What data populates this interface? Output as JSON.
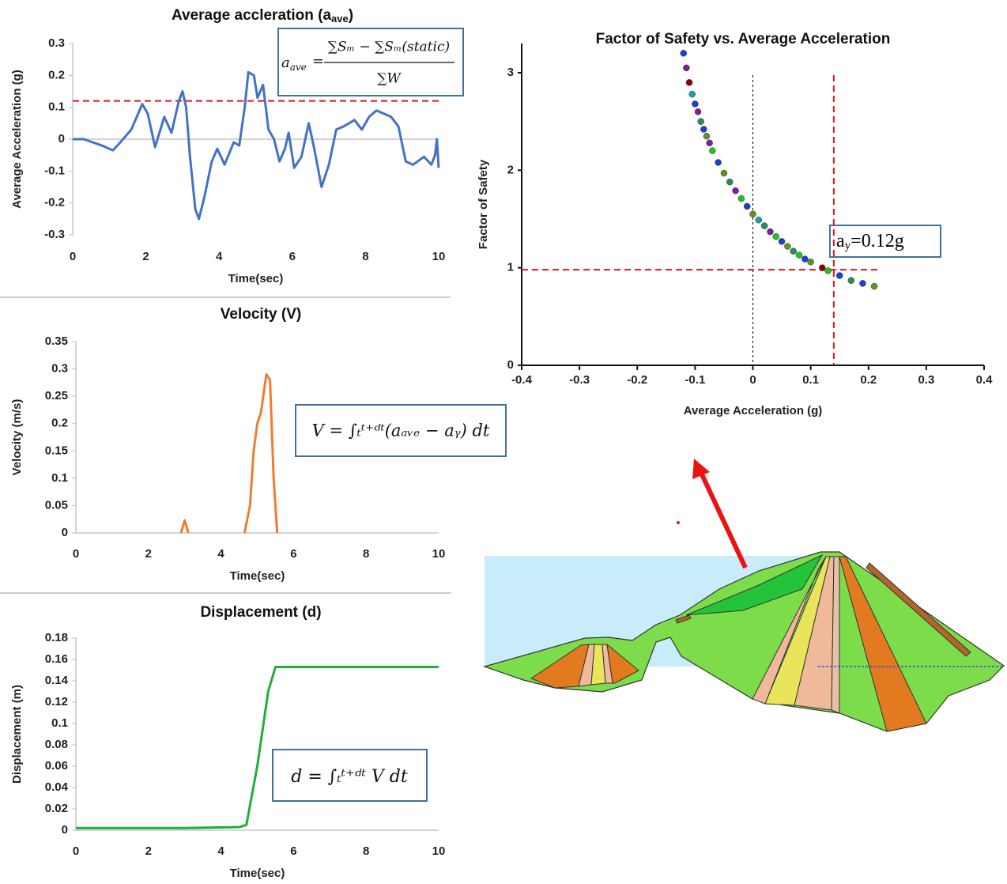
{
  "chart_data": [
    {
      "type": "line",
      "title": "Average accleration (a",
      "title_sub": "ave",
      "title_end": ")",
      "x_label": "Time(sec)",
      "y_label": "Average  Acceleration (g)",
      "xlim": [
        0,
        10
      ],
      "xticks": [
        0,
        2,
        4,
        6,
        8,
        10
      ],
      "ylim": [
        -0.3,
        0.3
      ],
      "yticks": [
        -0.3,
        -0.2,
        -0.1,
        0,
        0.1,
        0.2,
        0.3
      ],
      "threshold": 0.12,
      "threshold_color": "#e8121b",
      "formula": {
        "lhs": "a",
        "lhs_sub": "ave",
        "equals": "=",
        "numerator": "∑Sₘ − ∑Sₘ(static)",
        "denominator": "∑W"
      },
      "series": [
        {
          "color": "#4472c4",
          "x": [
            0,
            0.3,
            0.8,
            1.1,
            1.3,
            1.6,
            1.9,
            2.05,
            2.25,
            2.5,
            2.7,
            2.9,
            3.0,
            3.1,
            3.2,
            3.35,
            3.45,
            3.6,
            3.8,
            3.95,
            4.15,
            4.4,
            4.55,
            4.7,
            4.8,
            4.95,
            5.05,
            5.2,
            5.35,
            5.5,
            5.65,
            5.8,
            5.9,
            6.05,
            6.25,
            6.45,
            6.6,
            6.8,
            7.0,
            7.2,
            7.4,
            7.7,
            7.9,
            8.1,
            8.3,
            8.5,
            8.7,
            8.9,
            9.1,
            9.3,
            9.6,
            9.8,
            9.9,
            9.95,
            10
          ],
          "values": [
            0,
            0,
            -0.02,
            -0.035,
            -0.01,
            0.03,
            0.11,
            0.08,
            -0.025,
            0.07,
            0.02,
            0.12,
            0.15,
            0.1,
            -0.05,
            -0.22,
            -0.25,
            -0.18,
            -0.07,
            -0.03,
            -0.08,
            -0.01,
            -0.02,
            0.1,
            0.21,
            0.2,
            0.13,
            0.17,
            0.03,
            0,
            -0.07,
            -0.03,
            0.02,
            -0.09,
            -0.055,
            0.05,
            -0.03,
            -0.15,
            -0.08,
            0.03,
            0.04,
            0.06,
            0.03,
            0.07,
            0.09,
            0.08,
            0.07,
            0.04,
            -0.07,
            -0.08,
            -0.055,
            -0.08,
            -0.05,
            0,
            -0.09
          ]
        }
      ]
    },
    {
      "type": "line",
      "title": "Velocity (V)",
      "x_label": "Time(sec)",
      "y_label": "Velocity (m/s)",
      "xlim": [
        0,
        10
      ],
      "xticks": [
        0,
        2,
        4,
        6,
        8,
        10
      ],
      "ylim": [
        0,
        0.35
      ],
      "yticks": [
        0,
        0.05,
        0.1,
        0.15,
        0.2,
        0.25,
        0.3,
        0.35
      ],
      "formula": {
        "text": "V = ∫ₜᵗ⁺ᵈᵗ(aₐᵥₑ − aᵧ) dt"
      },
      "series": [
        {
          "color": "#ed7d31",
          "x": [
            2.9,
            3.0,
            3.1,
            null,
            4.65,
            4.8,
            4.9,
            5.0,
            5.1,
            5.25,
            5.35,
            5.45,
            5.55
          ],
          "values": [
            0,
            0.023,
            0,
            null,
            0,
            0.05,
            0.15,
            0.2,
            0.22,
            0.29,
            0.28,
            0.1,
            0
          ]
        }
      ]
    },
    {
      "type": "line",
      "title": "Displacement (d)",
      "x_label": "Time(sec)",
      "y_label": "Displacement (m)",
      "xlim": [
        0,
        10
      ],
      "xticks": [
        0,
        2,
        4,
        6,
        8,
        10
      ],
      "ylim": [
        0,
        0.18
      ],
      "yticks": [
        0,
        0.02,
        0.04,
        0.06,
        0.08,
        0.1,
        0.12,
        0.14,
        0.16,
        0.18
      ],
      "formula": {
        "text": "d = ∫ₜᵗ⁺ᵈᵗ V dt"
      },
      "series": [
        {
          "color": "#1fae3a",
          "x": [
            0,
            3,
            4.5,
            4.7,
            5.0,
            5.3,
            5.5,
            10
          ],
          "values": [
            0.002,
            0.002,
            0.003,
            0.005,
            0.06,
            0.13,
            0.153,
            0.153
          ]
        }
      ]
    },
    {
      "type": "scatter",
      "title": "Factor of Safety vs. Average Acceleration",
      "x_label": "Average Acceleration (g)",
      "y_label": "Factor of Safety",
      "xlim": [
        -0.4,
        0.4
      ],
      "xticks": [
        -0.4,
        -0.3,
        -0.2,
        -0.1,
        0,
        0.1,
        0.2,
        0.3,
        0.4
      ],
      "ylim": [
        0,
        3.3
      ],
      "yticks": [
        0,
        1,
        2,
        3
      ],
      "reference_lines": [
        {
          "axis": "x",
          "value": 0,
          "color": "#000000"
        },
        {
          "axis": "x",
          "value": 0.14,
          "color": "#e8121b"
        },
        {
          "axis": "y",
          "value": 0.98,
          "color": "#e8121b"
        }
      ],
      "annotation": {
        "base": "a",
        "sub": "y",
        "rest": "=0.12g"
      },
      "series": [
        {
          "colors": [
            "#1a3fd6",
            "#7a1fa2",
            "#8b0000",
            "#1aa3a3",
            "#1a3fd6",
            "#7a1fa2",
            "#2e8b57",
            "#1a3fd6",
            "#6b8e23",
            "#7a1fa2",
            "#22c322",
            "#1a3fd6",
            "#6b8e23",
            "#2e8b57",
            "#7a1fa2",
            "#22c322",
            "#1a3fd6",
            "#6b8e23",
            "#1aa3a3",
            "#2e8b57",
            "#7a1fa2",
            "#22c322",
            "#1a3fd6",
            "#6b8e23",
            "#2e8b57",
            "#22c322",
            "#1a3fd6",
            "#6b8e23",
            "#8b0000",
            "#22c322",
            "#1a3fd6",
            "#2e8b57",
            "#1a3fd6",
            "#6b8e23"
          ],
          "x": [
            -0.12,
            -0.115,
            -0.11,
            -0.105,
            -0.1,
            -0.095,
            -0.09,
            -0.085,
            -0.08,
            -0.075,
            -0.07,
            -0.06,
            -0.05,
            -0.04,
            -0.03,
            -0.02,
            -0.01,
            0,
            0.01,
            0.02,
            0.03,
            0.04,
            0.05,
            0.06,
            0.07,
            0.08,
            0.09,
            0.1,
            0.12,
            0.13,
            0.15,
            0.17,
            0.19,
            0.21
          ],
          "values": [
            3.2,
            3.05,
            2.9,
            2.78,
            2.68,
            2.6,
            2.5,
            2.42,
            2.35,
            2.28,
            2.2,
            2.08,
            1.97,
            1.88,
            1.79,
            1.71,
            1.63,
            1.55,
            1.49,
            1.43,
            1.37,
            1.32,
            1.27,
            1.22,
            1.17,
            1.13,
            1.09,
            1.06,
            1.0,
            0.97,
            0.92,
            0.87,
            0.84,
            0.81
          ]
        }
      ]
    }
  ]
}
